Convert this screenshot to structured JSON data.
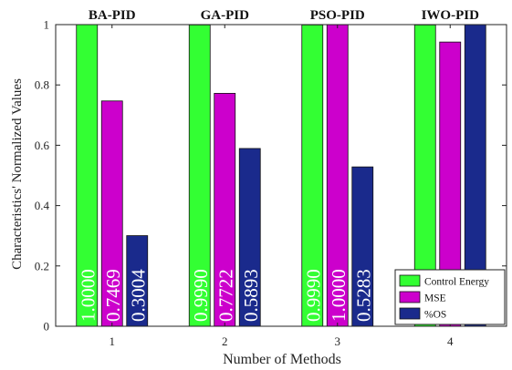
{
  "chart_data": {
    "type": "bar",
    "categories": [
      "1",
      "2",
      "3",
      "4"
    ],
    "group_titles": [
      "BA-PID",
      "GA-PID",
      "PSO-PID",
      "IWO-PID"
    ],
    "xlabel": "Number of Methods",
    "ylabel": "Characteristics' Normalized Values",
    "ylim": [
      0,
      1
    ],
    "yticks": [
      "0",
      "0.2",
      "0.4",
      "0.6",
      "0.8",
      "1"
    ],
    "grid": false,
    "legend_position": "bottom-right",
    "series": [
      {
        "name": "Control Energy",
        "color": "#33ff33",
        "values": [
          1.0,
          0.999,
          0.999,
          0.9989
        ],
        "labels": [
          "1.0000",
          "0.9990",
          "0.9990",
          "0.9989"
        ]
      },
      {
        "name": "MSE",
        "color": "#cc00cc",
        "values": [
          0.7469,
          0.7722,
          1.0,
          0.9422
        ],
        "labels": [
          "0.7469",
          "0.7722",
          "1.0000",
          "0.9422"
        ]
      },
      {
        "name": "%OS",
        "color": "#1a2a8c",
        "values": [
          0.3004,
          0.5893,
          0.5283,
          1.0
        ],
        "labels": [
          "0.3004",
          "0.5893",
          "0.5283",
          "1.0000"
        ]
      }
    ]
  }
}
